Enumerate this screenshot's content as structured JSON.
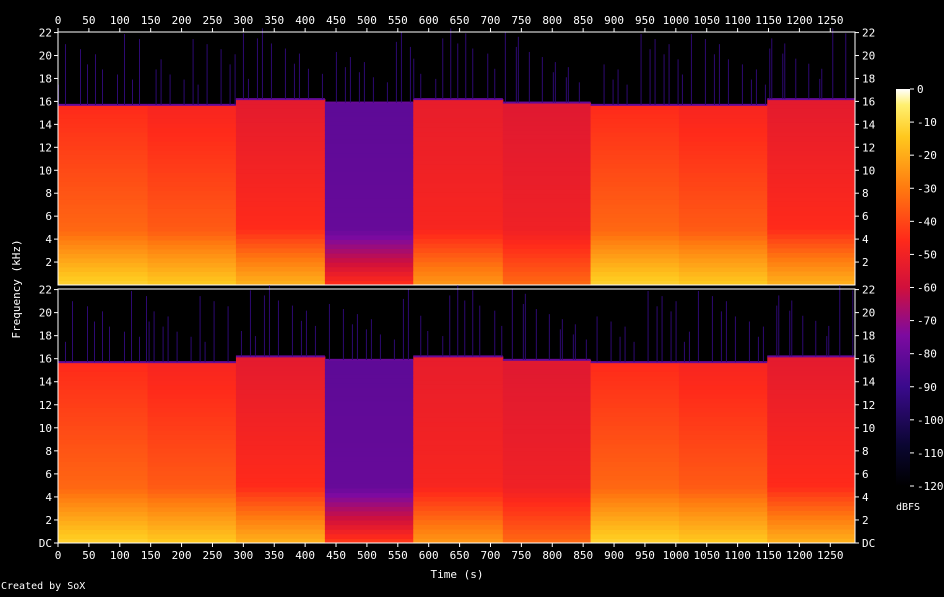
{
  "chart_data": {
    "type": "heatmap",
    "title": "",
    "xlabel": "Time (s)",
    "ylabel": "Frequency (kHz)",
    "colorbar_label": "dBFS",
    "footer": "Created by SoX",
    "xlim": [
      0,
      1290
    ],
    "ylim_khz": [
      0,
      22.05
    ],
    "x_ticks": [
      0,
      50,
      100,
      150,
      200,
      250,
      300,
      350,
      400,
      450,
      500,
      550,
      600,
      650,
      700,
      750,
      800,
      850,
      900,
      950,
      1000,
      1050,
      1100,
      1150,
      1200,
      1250
    ],
    "y_ticks": [
      "DC",
      "2",
      "4",
      "6",
      "8",
      "10",
      "12",
      "14",
      "16",
      "18",
      "20",
      "22"
    ],
    "y_tick_values": [
      0,
      2,
      4,
      6,
      8,
      10,
      12,
      14,
      16,
      18,
      20,
      22
    ],
    "colorbar_ticks": [
      0,
      -10,
      -20,
      -30,
      -40,
      -50,
      -60,
      -70,
      -80,
      -90,
      -100,
      -110,
      -120
    ],
    "colorbar_range": [
      -120,
      0
    ],
    "channels": [
      {
        "segments": [
          {
            "start": 0,
            "end": 145,
            "cutoff_khz": 15.7,
            "low_db": -18,
            "mid_db": -38,
            "high_db": -48
          },
          {
            "start": 145,
            "end": 288,
            "cutoff_khz": 15.7,
            "low_db": -20,
            "mid_db": -40,
            "high_db": -50
          },
          {
            "start": 288,
            "end": 432,
            "cutoff_khz": 16.2,
            "low_db": -25,
            "mid_db": -48,
            "high_db": -55
          },
          {
            "start": 432,
            "end": 575,
            "cutoff_khz": 15.9,
            "low_db": -48,
            "mid_db": -80,
            "high_db": -82
          },
          {
            "start": 575,
            "end": 720,
            "cutoff_khz": 16.2,
            "low_db": -30,
            "mid_db": -50,
            "high_db": -54
          },
          {
            "start": 720,
            "end": 862,
            "cutoff_khz": 15.9,
            "low_db": -38,
            "mid_db": -52,
            "high_db": -56
          },
          {
            "start": 862,
            "end": 1005,
            "cutoff_khz": 15.7,
            "low_db": -18,
            "mid_db": -38,
            "high_db": -48
          },
          {
            "start": 1005,
            "end": 1148,
            "cutoff_khz": 15.7,
            "low_db": -20,
            "mid_db": -40,
            "high_db": -50
          },
          {
            "start": 1148,
            "end": 1290,
            "cutoff_khz": 16.2,
            "low_db": -25,
            "mid_db": -48,
            "high_db": -55
          }
        ]
      },
      {
        "segments": [
          {
            "start": 0,
            "end": 145,
            "cutoff_khz": 15.7,
            "low_db": -18,
            "mid_db": -38,
            "high_db": -48
          },
          {
            "start": 145,
            "end": 288,
            "cutoff_khz": 15.7,
            "low_db": -20,
            "mid_db": -40,
            "high_db": -50
          },
          {
            "start": 288,
            "end": 432,
            "cutoff_khz": 16.2,
            "low_db": -25,
            "mid_db": -48,
            "high_db": -55
          },
          {
            "start": 432,
            "end": 575,
            "cutoff_khz": 15.9,
            "low_db": -46,
            "mid_db": -80,
            "high_db": -82
          },
          {
            "start": 575,
            "end": 720,
            "cutoff_khz": 16.2,
            "low_db": -30,
            "mid_db": -50,
            "high_db": -54
          },
          {
            "start": 720,
            "end": 862,
            "cutoff_khz": 15.9,
            "low_db": -38,
            "mid_db": -52,
            "high_db": -56
          },
          {
            "start": 862,
            "end": 1005,
            "cutoff_khz": 15.7,
            "low_db": -18,
            "mid_db": -38,
            "high_db": -48
          },
          {
            "start": 1005,
            "end": 1148,
            "cutoff_khz": 15.7,
            "low_db": -20,
            "mid_db": -40,
            "high_db": -50
          },
          {
            "start": 1148,
            "end": 1290,
            "cutoff_khz": 16.2,
            "low_db": -25,
            "mid_db": -48,
            "high_db": -55
          }
        ]
      }
    ]
  }
}
